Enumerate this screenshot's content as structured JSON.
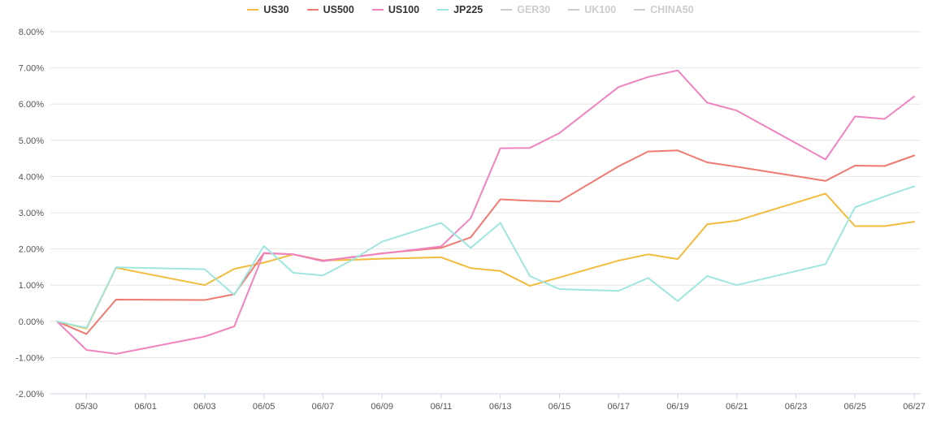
{
  "chart_data": {
    "type": "line",
    "legend_position": "top-center",
    "grid": true,
    "ylim": [
      -2.0,
      8.0
    ],
    "y_ticks": [
      "-2.00%",
      "-1.00%",
      "0.00%",
      "1.00%",
      "2.00%",
      "3.00%",
      "4.00%",
      "5.00%",
      "6.00%",
      "7.00%",
      "8.00%"
    ],
    "y_tick_values": [
      -2,
      -1,
      0,
      1,
      2,
      3,
      4,
      5,
      6,
      7,
      8
    ],
    "x_range": [
      0,
      29
    ],
    "x_ticks": [
      "05/30",
      "06/01",
      "06/03",
      "06/05",
      "06/07",
      "06/09",
      "06/11",
      "06/13",
      "06/15",
      "06/17",
      "06/19",
      "06/21",
      "06/23",
      "06/25",
      "06/27"
    ],
    "x_tick_days": [
      1,
      3,
      5,
      7,
      9,
      11,
      13,
      15,
      17,
      19,
      21,
      23,
      25,
      27,
      29
    ],
    "series": [
      {
        "name": "US30",
        "color": "#f2bb3c",
        "visible": true,
        "x": [
          0,
          1,
          2,
          5,
          6,
          7,
          8,
          9,
          10,
          11,
          13,
          14,
          15,
          16,
          19,
          20,
          21,
          22,
          23,
          26,
          27,
          28,
          29
        ],
        "y": [
          0.0,
          -0.2,
          1.48,
          1.0,
          1.45,
          1.62,
          1.85,
          1.68,
          1.7,
          1.73,
          1.77,
          1.47,
          1.39,
          0.98,
          1.68,
          1.85,
          1.72,
          2.68,
          2.78,
          3.53,
          2.63,
          2.63,
          2.75
        ]
      },
      {
        "name": "US500",
        "color": "#ee7a72",
        "visible": true,
        "x": [
          0,
          1,
          2,
          5,
          6,
          7,
          8,
          9,
          10,
          11,
          13,
          14,
          15,
          16,
          17,
          19,
          20,
          21,
          22,
          23,
          26,
          27,
          28,
          29
        ],
        "y": [
          0.0,
          -0.35,
          0.6,
          0.59,
          0.75,
          1.88,
          1.85,
          1.68,
          1.77,
          1.88,
          2.03,
          2.32,
          3.37,
          3.33,
          3.31,
          4.28,
          4.69,
          4.72,
          4.39,
          4.27,
          3.88,
          4.3,
          4.29,
          4.58
        ]
      },
      {
        "name": "US100",
        "color": "#ef84c0",
        "visible": true,
        "x": [
          0,
          1,
          2,
          5,
          6,
          7,
          8,
          9,
          10,
          11,
          13,
          14,
          15,
          16,
          17,
          19,
          20,
          21,
          22,
          23,
          26,
          27,
          28,
          29
        ],
        "y": [
          0.0,
          -0.79,
          -0.9,
          -0.42,
          -0.14,
          1.89,
          1.85,
          1.66,
          1.78,
          1.87,
          2.07,
          2.85,
          4.78,
          4.79,
          5.2,
          6.47,
          6.75,
          6.93,
          6.04,
          5.82,
          4.47,
          5.66,
          5.59,
          6.21
        ]
      },
      {
        "name": "JP225",
        "color": "#9fe6df",
        "visible": true,
        "x": [
          0,
          1,
          2,
          5,
          6,
          7,
          8,
          9,
          10,
          11,
          13,
          14,
          15,
          16,
          17,
          19,
          20,
          21,
          22,
          23,
          26,
          27,
          28,
          29
        ],
        "y": [
          0.0,
          -0.18,
          1.49,
          1.44,
          0.73,
          2.08,
          1.34,
          1.27,
          1.7,
          2.2,
          2.72,
          2.03,
          2.72,
          1.25,
          0.89,
          0.84,
          1.2,
          0.56,
          1.25,
          1.0,
          1.58,
          3.15,
          3.45,
          3.73
        ]
      },
      {
        "name": "GER30",
        "color": "#cccccc",
        "visible": false,
        "x": [],
        "y": []
      },
      {
        "name": "UK100",
        "color": "#cccccc",
        "visible": false,
        "x": [],
        "y": []
      },
      {
        "name": "CHINA50",
        "color": "#cccccc",
        "visible": false,
        "x": [],
        "y": []
      }
    ]
  }
}
